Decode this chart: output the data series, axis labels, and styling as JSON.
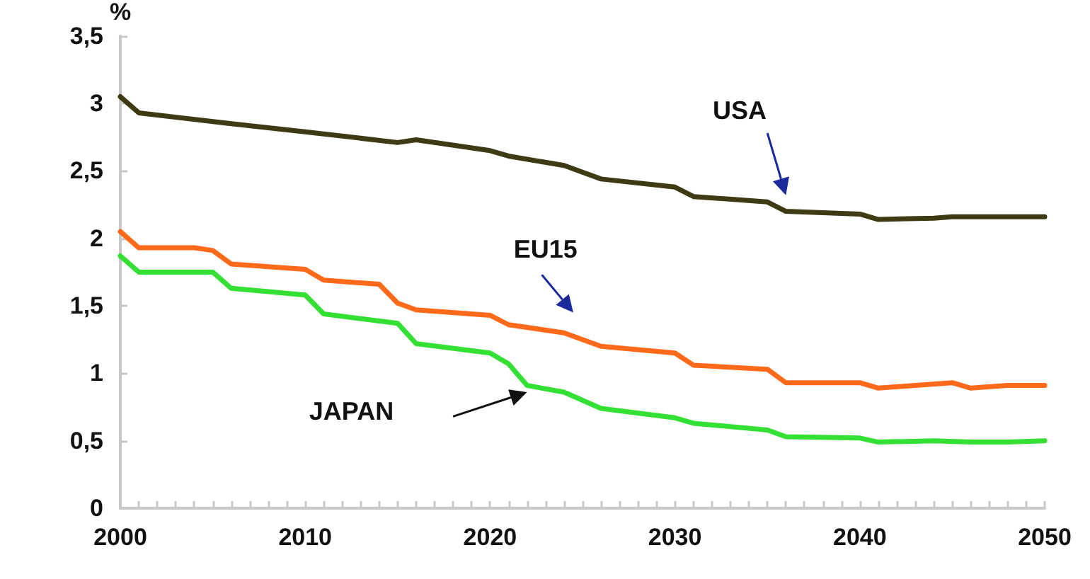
{
  "chart_data": {
    "type": "line",
    "ylabel": "%",
    "xlim": [
      2000,
      2050
    ],
    "ylim": [
      0,
      3.5
    ],
    "xticks": [
      2000,
      {
        "value": 2001,
        "label": null
      },
      {
        "value": 2002,
        "label": null
      },
      {
        "value": 2003,
        "label": null
      },
      {
        "value": 2004,
        "label": null
      },
      {
        "value": 2005,
        "label": null
      },
      {
        "value": 2006,
        "label": null
      },
      {
        "value": 2007,
        "label": null
      },
      {
        "value": 2008,
        "label": null
      },
      {
        "value": 2009,
        "label": null
      },
      2010,
      {
        "value": 2011,
        "label": null
      },
      {
        "value": 2012,
        "label": null
      },
      {
        "value": 2013,
        "label": null
      },
      {
        "value": 2014,
        "label": null
      },
      {
        "value": 2015,
        "label": null
      },
      {
        "value": 2016,
        "label": null
      },
      {
        "value": 2017,
        "label": null
      },
      {
        "value": 2018,
        "label": null
      },
      {
        "value": 2019,
        "label": null
      },
      2020,
      {
        "value": 2021,
        "label": null
      },
      {
        "value": 2022,
        "label": null
      },
      {
        "value": 2023,
        "label": null
      },
      {
        "value": 2024,
        "label": null
      },
      {
        "value": 2025,
        "label": null
      },
      {
        "value": 2026,
        "label": null
      },
      {
        "value": 2027,
        "label": null
      },
      {
        "value": 2028,
        "label": null
      },
      {
        "value": 2029,
        "label": null
      },
      2030,
      {
        "value": 2031,
        "label": null
      },
      {
        "value": 2032,
        "label": null
      },
      {
        "value": 2033,
        "label": null
      },
      {
        "value": 2034,
        "label": null
      },
      {
        "value": 2035,
        "label": null
      },
      {
        "value": 2036,
        "label": null
      },
      {
        "value": 2037,
        "label": null
      },
      {
        "value": 2038,
        "label": null
      },
      {
        "value": 2039,
        "label": null
      },
      2040,
      {
        "value": 2041,
        "label": null
      },
      {
        "value": 2042,
        "label": null
      },
      {
        "value": 2043,
        "label": null
      },
      {
        "value": 2044,
        "label": null
      },
      {
        "value": 2045,
        "label": null
      },
      {
        "value": 2046,
        "label": null
      },
      {
        "value": 2047,
        "label": null
      },
      {
        "value": 2048,
        "label": null
      },
      {
        "value": 2049,
        "label": null
      },
      2050
    ],
    "yticks": [
      0,
      {
        "value": 0.5,
        "label": "0,5"
      },
      1,
      {
        "value": 1.5,
        "label": "1,5"
      },
      2,
      {
        "value": 2.5,
        "label": "2,5"
      },
      3,
      {
        "value": 3.5,
        "label": "3,5"
      }
    ],
    "grid": false,
    "legend": false,
    "marker": "none",
    "line_style": "solid",
    "series": [
      {
        "name": "USA",
        "color": "#3d3a14",
        "x": [
          2000,
          2001,
          2006,
          2010,
          2015,
          2016,
          2020,
          2021,
          2024,
          2026,
          2030,
          2031,
          2035,
          2036,
          2040,
          2041,
          2044,
          2045,
          2050
        ],
        "values": [
          3.05,
          2.93,
          2.85,
          2.79,
          2.71,
          2.73,
          2.65,
          2.61,
          2.54,
          2.44,
          2.38,
          2.31,
          2.27,
          2.2,
          2.18,
          2.14,
          2.15,
          2.16,
          2.16
        ]
      },
      {
        "name": "EU15",
        "color": "#ff6a1a",
        "x": [
          2000,
          2001,
          2004,
          2005,
          2006,
          2010,
          2011,
          2014,
          2015,
          2016,
          2020,
          2021,
          2024,
          2026,
          2030,
          2031,
          2035,
          2036,
          2040,
          2041,
          2043,
          2045,
          2046,
          2048,
          2050
        ],
        "values": [
          2.05,
          1.93,
          1.93,
          1.91,
          1.81,
          1.77,
          1.69,
          1.66,
          1.52,
          1.47,
          1.43,
          1.36,
          1.3,
          1.2,
          1.15,
          1.06,
          1.03,
          0.93,
          0.93,
          0.89,
          0.91,
          0.93,
          0.89,
          0.91,
          0.91
        ]
      },
      {
        "name": "JAPAN",
        "color": "#33e033",
        "x": [
          2000,
          2001,
          2005,
          2006,
          2010,
          2011,
          2015,
          2016,
          2020,
          2021,
          2022,
          2024,
          2026,
          2030,
          2031,
          2035,
          2036,
          2040,
          2041,
          2044,
          2046,
          2048,
          2050
        ],
        "values": [
          1.87,
          1.75,
          1.75,
          1.63,
          1.58,
          1.44,
          1.37,
          1.22,
          1.15,
          1.07,
          0.91,
          0.86,
          0.74,
          0.67,
          0.63,
          0.58,
          0.53,
          0.52,
          0.49,
          0.5,
          0.49,
          0.49,
          0.5
        ]
      }
    ]
  }
}
